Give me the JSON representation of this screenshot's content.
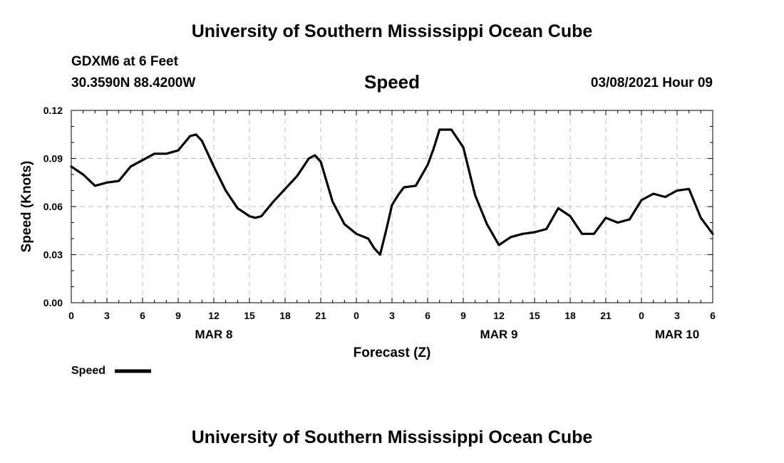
{
  "header": {
    "top_title": "University of Southern Mississippi Ocean Cube",
    "station": "GDXM6 at 6 Feet",
    "coords": "30.3590N 88.4200W",
    "datetime": "03/08/2021 Hour 09"
  },
  "footer": {
    "bottom_title": "University of Southern Mississippi Ocean Cube"
  },
  "chart_data": {
    "type": "line",
    "title": "Speed",
    "xlabel": "Forecast (Z)",
    "ylabel": "Speed (Knots)",
    "xlim": [
      0,
      54
    ],
    "ylim": [
      0,
      0.12
    ],
    "grid": true,
    "x_ticks": [
      0,
      3,
      6,
      9,
      12,
      15,
      18,
      21,
      24,
      27,
      30,
      33,
      36,
      39,
      42,
      45,
      48,
      51,
      54
    ],
    "x_tick_labels": [
      "0",
      "3",
      "6",
      "9",
      "12",
      "15",
      "18",
      "21",
      "0",
      "3",
      "6",
      "9",
      "12",
      "15",
      "18",
      "21",
      "0",
      "3",
      "6"
    ],
    "y_ticks": [
      0,
      0.03,
      0.06,
      0.09,
      0.12
    ],
    "y_tick_labels": [
      "0.00",
      "0.03",
      "0.06",
      "0.09",
      "0.12"
    ],
    "date_labels": [
      {
        "x": 12,
        "label": "MAR 8"
      },
      {
        "x": 36,
        "label": "MAR 9"
      },
      {
        "x": 51,
        "label": "MAR 10"
      }
    ],
    "legend": {
      "position": "bottom-left",
      "label": "Speed"
    },
    "series": [
      {
        "name": "Speed",
        "color": "#000000",
        "x": [
          0,
          1,
          2,
          3,
          4,
          5,
          6,
          7,
          8,
          9,
          10,
          10.5,
          11,
          12,
          13,
          14,
          15,
          15.5,
          16,
          17,
          18,
          19,
          20,
          20.5,
          21,
          22,
          23,
          24,
          25,
          25.5,
          26,
          26.5,
          27,
          27.5,
          28,
          29,
          30,
          30.5,
          31,
          32,
          33,
          34,
          35,
          36,
          37,
          38,
          39,
          40,
          41,
          42,
          43,
          44,
          45,
          46,
          47,
          48,
          49,
          50,
          51,
          52,
          53,
          54
        ],
        "values": [
          0.085,
          0.08,
          0.073,
          0.075,
          0.076,
          0.085,
          0.089,
          0.093,
          0.093,
          0.095,
          0.104,
          0.105,
          0.101,
          0.085,
          0.07,
          0.059,
          0.054,
          0.053,
          0.054,
          0.063,
          0.071,
          0.079,
          0.09,
          0.092,
          0.088,
          0.063,
          0.049,
          0.043,
          0.04,
          0.034,
          0.03,
          0.045,
          0.061,
          0.067,
          0.072,
          0.073,
          0.086,
          0.096,
          0.108,
          0.108,
          0.097,
          0.067,
          0.049,
          0.036,
          0.041,
          0.043,
          0.044,
          0.046,
          0.059,
          0.054,
          0.043,
          0.043,
          0.053,
          0.05,
          0.052,
          0.064,
          0.068,
          0.066,
          0.07,
          0.071,
          0.053,
          0.043
        ]
      }
    ]
  }
}
